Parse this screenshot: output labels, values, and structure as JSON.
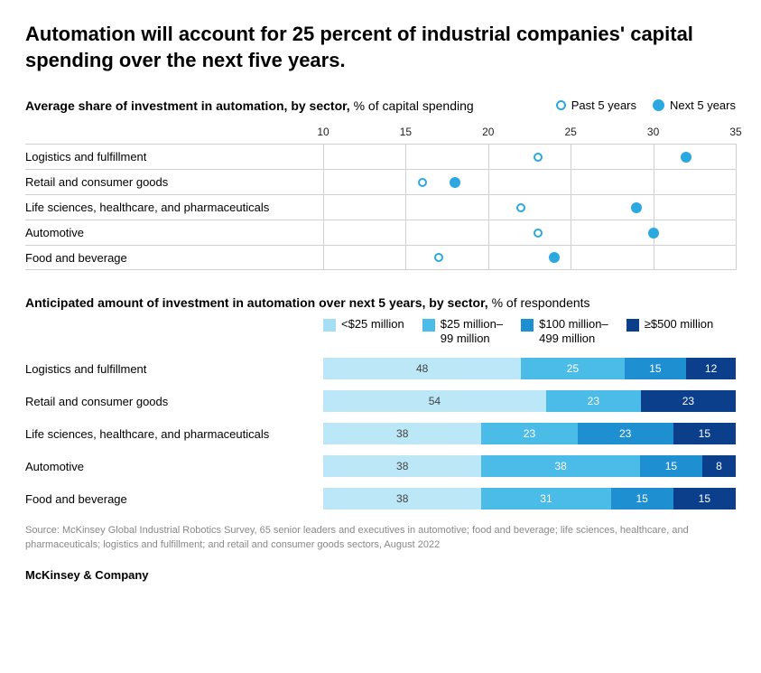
{
  "title": "Automation will account for 25 percent of industrial companies' capital spending over the next five years.",
  "chart1": {
    "type": "dot",
    "subtitle_bold": "Average share of investment in automation, by sector,",
    "subtitle_plain": " % of capital spending",
    "legend": {
      "past": "Past 5 years",
      "next": "Next 5 years"
    },
    "xmin": 10,
    "xmax": 35,
    "xtick_step": 5,
    "xticks": [
      "10",
      "15",
      "20",
      "25",
      "30",
      "35"
    ],
    "marker_color": "#2ba8e0",
    "grid_color": "#d0d0d0",
    "rows": [
      {
        "label": "Logistics and fulfillment",
        "past": 23,
        "next": 32
      },
      {
        "label": "Retail and consumer goods",
        "past": 16,
        "next": 18
      },
      {
        "label": "Life sciences, healthcare, and pharmaceuticals",
        "past": 22,
        "next": 29
      },
      {
        "label": "Automotive",
        "past": 23,
        "next": 30
      },
      {
        "label": "Food and beverage",
        "past": 17,
        "next": 24
      }
    ]
  },
  "chart2": {
    "type": "stacked-bar",
    "subtitle_bold": "Anticipated amount of investment in automation over next 5 years, by sector,",
    "subtitle_plain": " % of respondents",
    "colors": [
      "#a6dff5",
      "#4bbbe8",
      "#1e8fd1",
      "#0b3f8c"
    ],
    "legend": [
      "<$25 million",
      "$25 million–\n99 million",
      "$100 million–\n499 million",
      "≥$500 million"
    ],
    "rows": [
      {
        "label": "Logistics and fulfillment",
        "values": [
          48,
          25,
          15,
          12
        ]
      },
      {
        "label": "Retail and consumer goods",
        "values": [
          54,
          23,
          0,
          23
        ]
      },
      {
        "label": "Life sciences, healthcare, and pharmaceuticals",
        "values": [
          38,
          23,
          23,
          15
        ]
      },
      {
        "label": "Automotive",
        "values": [
          38,
          38,
          15,
          8
        ]
      },
      {
        "label": "Food and beverage",
        "values": [
          38,
          31,
          15,
          15
        ]
      }
    ]
  },
  "source": "Source: McKinsey Global Industrial Robotics Survey, 65 senior leaders and executives in automotive; food and beverage; life sciences, healthcare, and pharmaceuticals; logistics and fulfillment; and retail and consumer goods sectors, August 2022",
  "brand": "McKinsey & Company",
  "label_fontsize": 13,
  "title_fontsize": 22,
  "background_color": "#ffffff"
}
